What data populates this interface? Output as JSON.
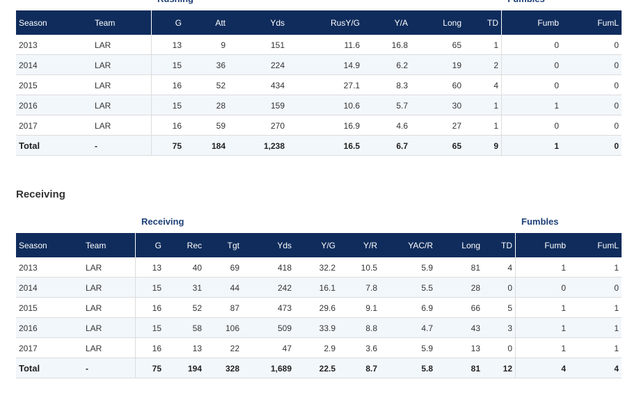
{
  "rushing": {
    "groups": [
      "Rushing",
      "Fumbles"
    ],
    "columns": [
      "Season",
      "Team",
      "G",
      "Att",
      "Yds",
      "RusY/G",
      "Y/A",
      "Long",
      "TD",
      "Fumb",
      "FumL"
    ],
    "rows": [
      [
        "2013",
        "LAR",
        "13",
        "9",
        "151",
        "11.6",
        "16.8",
        "65",
        "1",
        "0",
        "0"
      ],
      [
        "2014",
        "LAR",
        "15",
        "36",
        "224",
        "14.9",
        "6.2",
        "19",
        "2",
        "0",
        "0"
      ],
      [
        "2015",
        "LAR",
        "16",
        "52",
        "434",
        "27.1",
        "8.3",
        "60",
        "4",
        "0",
        "0"
      ],
      [
        "2016",
        "LAR",
        "15",
        "28",
        "159",
        "10.6",
        "5.7",
        "30",
        "1",
        "1",
        "0"
      ],
      [
        "2017",
        "LAR",
        "16",
        "59",
        "270",
        "16.9",
        "4.6",
        "27",
        "1",
        "0",
        "0"
      ],
      [
        "Total",
        "-",
        "75",
        "184",
        "1,238",
        "16.5",
        "6.7",
        "65",
        "9",
        "1",
        "0"
      ]
    ]
  },
  "receiving_heading": "Receiving",
  "receiving": {
    "groups": [
      "Receiving",
      "Fumbles"
    ],
    "columns": [
      "Season",
      "Team",
      "G",
      "Rec",
      "Tgt",
      "Yds",
      "Y/G",
      "Y/R",
      "YAC/R",
      "Long",
      "TD",
      "Fumb",
      "FumL"
    ],
    "rows": [
      [
        "2013",
        "LAR",
        "13",
        "40",
        "69",
        "418",
        "32.2",
        "10.5",
        "5.9",
        "81",
        "4",
        "1",
        "1"
      ],
      [
        "2014",
        "LAR",
        "15",
        "31",
        "44",
        "242",
        "16.1",
        "7.8",
        "5.5",
        "28",
        "0",
        "0",
        "0"
      ],
      [
        "2015",
        "LAR",
        "16",
        "52",
        "87",
        "473",
        "29.6",
        "9.1",
        "6.9",
        "66",
        "5",
        "1",
        "1"
      ],
      [
        "2016",
        "LAR",
        "15",
        "58",
        "106",
        "509",
        "33.9",
        "8.8",
        "4.7",
        "43",
        "3",
        "1",
        "1"
      ],
      [
        "2017",
        "LAR",
        "16",
        "13",
        "22",
        "47",
        "2.9",
        "3.6",
        "5.9",
        "13",
        "0",
        "1",
        "1"
      ],
      [
        "Total",
        "-",
        "75",
        "194",
        "328",
        "1,689",
        "22.5",
        "8.7",
        "5.8",
        "81",
        "12",
        "4",
        "4"
      ]
    ]
  }
}
